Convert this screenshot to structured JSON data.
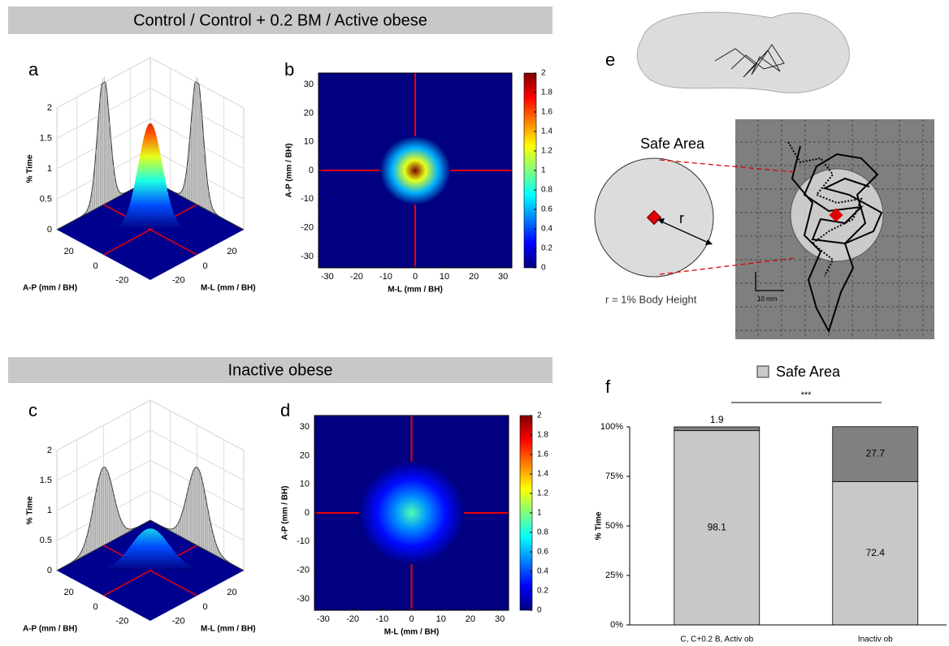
{
  "headers": [
    "Control / Control + 0.2 BM / Active obese",
    "Inactive obese"
  ],
  "panel_e": {
    "letter": "e",
    "title": "Safe Area",
    "radius": "r",
    "caption": "r = 1% Body Height",
    "scale_bar": "10 mm"
  },
  "chart_data": [
    {
      "type": "surface3d",
      "letter": "a",
      "zlabel": "% Time",
      "xlabel": "A-P (mm / BH)",
      "ylabel": "M-L (mm / BH)",
      "zlim": [
        0,
        2
      ],
      "zticks": [
        0,
        0.5,
        1,
        1.5,
        2
      ],
      "xlim": [
        -35,
        35
      ],
      "xticks": [
        20,
        0,
        -20
      ],
      "ylim": [
        -35,
        35
      ],
      "yticks": [
        -20,
        0,
        20
      ],
      "center_peak": 1.75,
      "marginal_peak": 2.1
    },
    {
      "type": "heatmap",
      "letter": "b",
      "xlabel": "M-L (mm / BH)",
      "ylabel": "A-P (mm / BH)",
      "xlim": [
        -33,
        33
      ],
      "xticks": [
        -30,
        -20,
        -10,
        0,
        10,
        20,
        30
      ],
      "ylim": [
        -34,
        34
      ],
      "yticks": [
        30,
        20,
        10,
        0,
        -10,
        -20,
        -30
      ],
      "clim": [
        0,
        2
      ],
      "cticks": [
        0,
        0.2,
        0.4,
        0.6,
        0.8,
        1,
        1.2,
        1.4,
        1.6,
        1.8,
        2
      ],
      "center_value": 2
    },
    {
      "type": "surface3d",
      "letter": "c",
      "zlabel": "% Time",
      "xlabel": "A-P (mm / BH)",
      "ylabel": "M-L (mm / BH)",
      "zlim": [
        0,
        2
      ],
      "zticks": [
        0,
        0.5,
        1,
        1.5,
        2
      ],
      "xlim": [
        -35,
        35
      ],
      "xticks": [
        20,
        0,
        -20
      ],
      "ylim": [
        -35,
        35
      ],
      "yticks": [
        -20,
        0,
        20
      ],
      "center_peak": 0.7,
      "marginal_peak": 1.3
    },
    {
      "type": "heatmap",
      "letter": "d",
      "xlabel": "M-L (mm / BH)",
      "ylabel": "A-P (mm / BH)",
      "xlim": [
        -33,
        33
      ],
      "xticks": [
        -30,
        -20,
        -10,
        0,
        10,
        20,
        30
      ],
      "ylim": [
        -34,
        34
      ],
      "yticks": [
        30,
        20,
        10,
        0,
        -10,
        -20,
        -30
      ],
      "clim": [
        0,
        2
      ],
      "cticks": [
        0,
        0.2,
        0.4,
        0.6,
        0.8,
        1,
        1.2,
        1.4,
        1.6,
        1.8,
        2
      ],
      "center_value": 0.9
    },
    {
      "type": "bar",
      "letter": "f",
      "ylabel": "% Time",
      "annotation": "***",
      "categories": [
        "C, C+0.2 B, Activ ob",
        "Inactiv ob"
      ],
      "series": [
        {
          "name": "Safe Area",
          "color": "#c8c8c8",
          "values": [
            98.1,
            72.4
          ]
        },
        {
          "color": "#808080",
          "values": [
            1.9,
            27.7
          ]
        }
      ],
      "ylim": [
        0,
        100
      ],
      "yticks": [
        {
          "value": 0,
          "label": "0%"
        },
        {
          "value": 25,
          "label": "25%"
        },
        {
          "value": 50,
          "label": "50%"
        },
        {
          "value": 75,
          "label": "75%"
        },
        {
          "value": 100,
          "label": "100%"
        }
      ]
    }
  ]
}
